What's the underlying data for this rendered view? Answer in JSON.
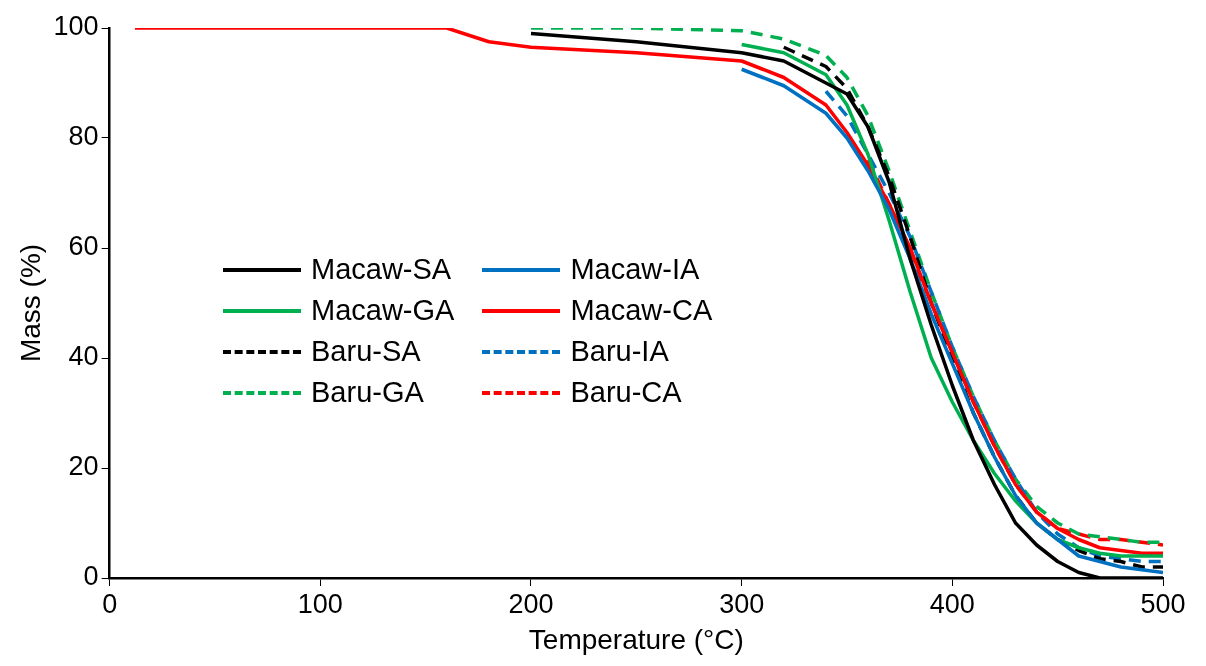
{
  "chart_data": {
    "type": "line",
    "xlabel": "Temperature (°C)",
    "ylabel": "Mass (%)",
    "xlim": [
      0,
      500
    ],
    "xticks": [
      0,
      100,
      200,
      300,
      400,
      500
    ],
    "ylim": [
      0,
      100
    ],
    "yticks": [
      0,
      20,
      40,
      60,
      80,
      100
    ],
    "grid": false,
    "legend": "left",
    "marker": "none",
    "series": [
      {
        "name": "Macaw-SA",
        "color": "#000000",
        "line_style": "solid",
        "x": [
          200,
          250,
          300,
          320,
          340,
          350,
          360,
          370,
          380,
          390,
          400,
          410,
          420,
          430,
          440,
          450,
          460,
          470,
          480,
          490,
          500
        ],
        "values": [
          99,
          97.5,
          95.5,
          94,
          90,
          88,
          82,
          72,
          58,
          46,
          35,
          25,
          17,
          10,
          6,
          3,
          1,
          0,
          0,
          0,
          0
        ]
      },
      {
        "name": "Macaw-IA",
        "color": "#0070c0",
        "line_style": "solid",
        "x": [
          300,
          320,
          340,
          350,
          360,
          370,
          380,
          390,
          400,
          410,
          420,
          430,
          440,
          450,
          460,
          470,
          480,
          490,
          500
        ],
        "values": [
          92.5,
          89.5,
          84.5,
          80,
          74,
          67,
          58,
          48,
          39,
          30,
          22,
          15,
          10,
          7,
          4,
          3,
          2,
          1.5,
          1
        ]
      },
      {
        "name": "Macaw-GA",
        "color": "#00b050",
        "line_style": "solid",
        "x": [
          300,
          320,
          340,
          350,
          360,
          370,
          380,
          390,
          400,
          410,
          420,
          430,
          440,
          450,
          460,
          470,
          480,
          490,
          500
        ],
        "values": [
          97,
          95.5,
          91.5,
          86,
          77,
          65,
          52,
          40,
          32,
          25,
          19,
          14,
          10,
          7,
          5.5,
          4.5,
          4,
          4,
          4
        ]
      },
      {
        "name": "Macaw-CA",
        "color": "#ff0000",
        "line_style": "solid",
        "x": [
          12,
          100,
          160,
          180,
          200,
          250,
          300,
          320,
          340,
          350,
          360,
          370,
          380,
          390,
          400,
          410,
          420,
          430,
          440,
          450,
          460,
          470,
          480,
          490,
          500
        ],
        "values": [
          100,
          100,
          100,
          97.5,
          96.5,
          95.5,
          94,
          91,
          86,
          81,
          75,
          68,
          60,
          50,
          41,
          32,
          24,
          17,
          12,
          9,
          7,
          5.5,
          5,
          4.5,
          4.5
        ]
      },
      {
        "name": "Baru-SA",
        "color": "#000000",
        "line_style": "dashed",
        "x": [
          320,
          340,
          350,
          360,
          370,
          380,
          390,
          400,
          410,
          420,
          430,
          440,
          450,
          460,
          470,
          480,
          490,
          500
        ],
        "values": [
          96.5,
          93,
          89,
          82,
          73,
          62,
          50,
          40,
          30,
          22,
          15,
          10,
          7,
          5,
          3.5,
          3,
          2,
          2
        ]
      },
      {
        "name": "Baru-IA",
        "color": "#0070c0",
        "line_style": "dashed",
        "x": [
          340,
          350,
          360,
          370,
          380,
          390,
          400,
          410,
          420,
          430,
          440,
          450,
          460,
          470,
          480,
          490,
          500
        ],
        "values": [
          88.5,
          84,
          77,
          70,
          62,
          52,
          42,
          33,
          25,
          18,
          12,
          8,
          5.5,
          4,
          3.5,
          3,
          3
        ]
      },
      {
        "name": "Baru-GA",
        "color": "#00b050",
        "line_style": "dashed",
        "x": [
          200,
          250,
          300,
          320,
          340,
          350,
          360,
          370,
          380,
          390,
          400,
          410,
          420,
          430,
          440,
          450,
          460,
          470,
          480,
          490,
          500
        ],
        "values": [
          100,
          100,
          99.5,
          98,
          95,
          91,
          84,
          74,
          63,
          52,
          42,
          33,
          25,
          18,
          13,
          10,
          8,
          7.5,
          7,
          6.5,
          6.5
        ]
      },
      {
        "name": "Baru-CA",
        "color": "#ff0000",
        "line_style": "dashed",
        "x": [
          360,
          370,
          380,
          390,
          400,
          410,
          420,
          430,
          440,
          450,
          460,
          470,
          480,
          490,
          500
        ],
        "values": [
          76,
          68,
          59,
          50,
          41,
          32,
          24,
          17,
          12,
          9,
          8,
          7,
          7,
          6.5,
          6
        ]
      }
    ]
  }
}
